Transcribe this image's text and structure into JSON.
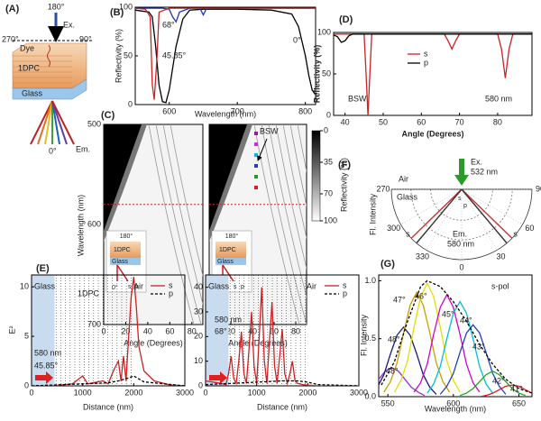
{
  "panel_A": {
    "label": "(A)",
    "top_angle": "180°",
    "excitation": "Ex.",
    "left_angle": "270°",
    "right_angle": "90°",
    "dye": "Dye",
    "stack": "1DPC",
    "substrate": "Glass",
    "bottom_angle": "0°",
    "emission": "Em."
  },
  "chart_data": [
    {
      "type": "line",
      "label": "(B)",
      "x_label": "Wavelength (nm)",
      "y_label": "Reflectivity (%)",
      "xlim": [
        550,
        815
      ],
      "ylim": [
        0,
        100
      ],
      "xticks": [
        600,
        700,
        800
      ],
      "yticks": [
        0,
        50,
        100
      ],
      "series": [
        {
          "name": "0°",
          "color": "#000000",
          "x": [
            550,
            560,
            570,
            575,
            580,
            585,
            590,
            595,
            600,
            610,
            620,
            630,
            650,
            700,
            750,
            780,
            790,
            800,
            805,
            810,
            815
          ],
          "values": [
            97,
            96,
            95,
            90,
            60,
            20,
            3,
            2,
            15,
            60,
            88,
            97,
            98,
            98,
            97,
            93,
            80,
            50,
            30,
            15,
            10
          ]
        },
        {
          "name": "68°",
          "color": "#2233bb",
          "x": [
            550,
            590,
            600,
            605,
            610,
            615,
            630,
            645,
            650,
            655,
            670,
            815
          ],
          "values": [
            99,
            99,
            98,
            90,
            85,
            95,
            99,
            99,
            92,
            99,
            99,
            99
          ]
        },
        {
          "name": "45.85°",
          "color": "#cc2222",
          "x": [
            550,
            565,
            572,
            575,
            578,
            582,
            585,
            600,
            650,
            700,
            800,
            815
          ],
          "values": [
            99,
            98,
            90,
            20,
            5,
            50,
            95,
            99,
            99,
            99,
            99,
            99
          ]
        }
      ]
    },
    {
      "type": "heatmap",
      "label": "(C)",
      "x_label": "Angle (Degrees)",
      "y_label": "Wavelength (nm)",
      "xlim": [
        0,
        90
      ],
      "ylim": [
        700,
        500
      ],
      "xticks": [
        0,
        20,
        40,
        60,
        80
      ],
      "yticks": [
        500,
        600,
        700
      ],
      "reference_y": 580,
      "annotation": "BSW",
      "colorbar": {
        "label": "Reflectivity (%)",
        "lim": [
          0,
          100
        ],
        "ticks": [
          0,
          35,
          70,
          100
        ]
      },
      "inset": {
        "top": "180°",
        "stack": "1DPC",
        "substrate": "Glass",
        "bottom": "0°",
        "s": "s",
        "p": "p"
      }
    },
    {
      "type": "line",
      "label": "(D)",
      "x_label": "Angle (Degrees)",
      "y_label": "Reflectivity (%)",
      "xlim": [
        37,
        89
      ],
      "ylim": [
        0,
        100
      ],
      "xticks": [
        40,
        50,
        60,
        70,
        80
      ],
      "yticks": [
        0,
        50,
        100
      ],
      "annotations": [
        "BSW",
        "580 nm"
      ],
      "series": [
        {
          "name": "s",
          "color": "#cc2222",
          "x": [
            37,
            45,
            45.5,
            46,
            46.5,
            47,
            66,
            67,
            68,
            69,
            70,
            80,
            81,
            82,
            83,
            84,
            89
          ],
          "values": [
            98,
            98,
            50,
            0,
            50,
            98,
            98,
            90,
            80,
            90,
            98,
            98,
            80,
            45,
            80,
            98,
            98
          ]
        },
        {
          "name": "p",
          "color": "#000000",
          "x": [
            37,
            38,
            39,
            40,
            41,
            42,
            89
          ],
          "values": [
            97,
            95,
            88,
            90,
            96,
            98,
            98
          ]
        }
      ]
    },
    {
      "type": "line",
      "label": "(E)",
      "x_label": "Distance (nm)",
      "y_label": "E²",
      "xlim": [
        0,
        3000
      ],
      "ylim": [
        0,
        11.2
      ],
      "xticks": [
        0,
        1000,
        2000,
        3000
      ],
      "yticks": [
        0,
        5,
        10
      ],
      "annotations": [
        "Glass",
        "1DPC",
        "Air",
        "580 nm",
        "45.85°"
      ],
      "series": [
        {
          "name": "s",
          "color": "#cc2222",
          "x": [
            0,
            400,
            800,
            1000,
            1100,
            1200,
            1400,
            1500,
            1600,
            1700,
            1750,
            1800,
            1850,
            1900,
            1950,
            2000,
            2050,
            2100,
            2200,
            2400,
            2700,
            3000
          ],
          "values": [
            0,
            0,
            0.2,
            1,
            0.2,
            0.3,
            0.5,
            0.2,
            1.5,
            2.5,
            0.5,
            3,
            0.5,
            5,
            9,
            11,
            8,
            4,
            1.5,
            0.5,
            0.1,
            0
          ]
        },
        {
          "name": "p",
          "color": "#000000",
          "dash": true,
          "x": [
            0,
            500,
            1000,
            1500,
            1700,
            1900,
            2000,
            2200,
            3000
          ],
          "values": [
            0,
            0.1,
            0.2,
            0.3,
            0.5,
            0.8,
            1,
            0.4,
            0
          ]
        }
      ]
    },
    {
      "type": "line",
      "x_label": "Distance (nm)",
      "xlim": [
        0,
        3000
      ],
      "ylim": [
        0,
        45
      ],
      "xticks": [
        0,
        1000,
        2000,
        3000
      ],
      "yticks": [
        0,
        10,
        20,
        30,
        40
      ],
      "annotations": [
        "Glass",
        "Air",
        "580 nm",
        "68°"
      ],
      "series": [
        {
          "name": "s",
          "color": "#cc2222",
          "x": [
            0,
            300,
            400,
            450,
            500,
            550,
            600,
            650,
            700,
            750,
            800,
            850,
            900,
            950,
            1000,
            1050,
            1100,
            1150,
            1200,
            1250,
            1300,
            1350,
            1400,
            1450,
            1500,
            1550,
            1600,
            1650,
            1700,
            1750,
            1800,
            1900,
            2000,
            2200,
            3000
          ],
          "values": [
            2,
            1,
            0.5,
            5,
            12,
            3,
            1,
            10,
            22,
            5,
            1,
            15,
            30,
            8,
            1,
            20,
            40,
            10,
            1,
            18,
            34,
            8,
            1,
            12,
            23,
            5,
            1,
            5,
            10,
            2,
            1,
            0.5,
            0.3,
            0,
            0
          ]
        },
        {
          "name": "p",
          "color": "#000000",
          "dash": true,
          "x": [
            0,
            500,
            1000,
            1500,
            1800,
            2000,
            2200,
            3000
          ],
          "values": [
            0.5,
            1,
            1.5,
            2,
            2,
            1.5,
            0.5,
            0
          ]
        }
      ]
    },
    {
      "type": "polar",
      "label": "(F)",
      "y_label": "Fl. Intensity",
      "angle_ticks": [
        270,
        300,
        330,
        0,
        30,
        60,
        90
      ],
      "annotations": {
        "excitation": "Ex.",
        "excitation_wavelength": "532 nm",
        "upper_medium": "Air",
        "lower_medium": "Glass",
        "emission": "Em.",
        "emission_wavelength": "580 nm"
      },
      "series": [
        {
          "name": "s",
          "color": "#cc3333",
          "values": [
            -45.85,
            45.85
          ]
        },
        {
          "name": "p",
          "color": "#333333",
          "values": [
            -40,
            40
          ]
        }
      ]
    },
    {
      "type": "line",
      "label": "(G)",
      "x_label": "Wavelength (nm)",
      "y_label": "Fl. Intensity",
      "xlim": [
        543,
        660
      ],
      "ylim": [
        0,
        1.05
      ],
      "xticks": [
        550,
        600,
        650
      ],
      "yticks": [
        {
          "value": 0,
          "label": "0.0"
        },
        0.5,
        {
          "value": 1,
          "label": "1.0"
        }
      ],
      "annotation": "s-pol",
      "series": [
        {
          "name": "48°",
          "color": "#9b30c8",
          "x": [
            528,
            533,
            538,
            543,
            548,
            553,
            558,
            563,
            568,
            573,
            578
          ],
          "values": [
            0.01,
            0.04,
            0.08,
            0.15,
            0.22,
            0.25,
            0.22,
            0.15,
            0.08,
            0.04,
            0.01
          ]
        },
        {
          "name": "48°",
          "color": "#1a1a7a",
          "x": [
            537,
            542,
            547,
            552,
            557,
            562,
            567,
            572,
            577,
            582,
            587
          ],
          "values": [
            0.02,
            0.08,
            0.19,
            0.37,
            0.53,
            0.6,
            0.53,
            0.37,
            0.19,
            0.08,
            0.02
          ]
        },
        {
          "name": "47°",
          "color": "#c8a000",
          "x": [
            547,
            552,
            557,
            562,
            567,
            572,
            577,
            582,
            587,
            592,
            597
          ],
          "values": [
            0.04,
            0.13,
            0.29,
            0.55,
            0.79,
            0.9,
            0.79,
            0.55,
            0.29,
            0.13,
            0.04
          ]
        },
        {
          "name": "46°",
          "color": "#e0e000",
          "x": [
            555,
            560,
            565,
            570,
            575,
            580,
            585,
            590,
            595,
            600,
            605
          ],
          "values": [
            0.04,
            0.14,
            0.31,
            0.6,
            0.86,
            0.98,
            0.86,
            0.6,
            0.31,
            0.14,
            0.04
          ]
        },
        {
          "name": "45°",
          "color": "#d000d0",
          "x": [
            570,
            575,
            580,
            585,
            590,
            595,
            600,
            605,
            610,
            615,
            620
          ],
          "values": [
            0.04,
            0.12,
            0.28,
            0.54,
            0.77,
            0.88,
            0.77,
            0.54,
            0.28,
            0.12,
            0.04
          ]
        },
        {
          "name": "44°",
          "color": "#00c0d0",
          "x": [
            580,
            585,
            590,
            595,
            600,
            605,
            610,
            615,
            620,
            625,
            630
          ],
          "values": [
            0.03,
            0.11,
            0.26,
            0.5,
            0.72,
            0.82,
            0.72,
            0.5,
            0.26,
            0.11,
            0.03
          ]
        },
        {
          "name": "43°",
          "color": "#2040c0",
          "x": [
            590,
            595,
            600,
            605,
            610,
            615,
            620,
            625,
            630,
            635,
            640
          ],
          "values": [
            0.02,
            0.09,
            0.2,
            0.38,
            0.55,
            0.62,
            0.55,
            0.38,
            0.2,
            0.09,
            0.02
          ]
        },
        {
          "name": "42°",
          "color": "#20a020",
          "x": [
            605,
            610,
            615,
            620,
            625,
            630,
            635,
            640,
            645,
            650,
            655
          ],
          "values": [
            0.01,
            0.03,
            0.07,
            0.13,
            0.19,
            0.22,
            0.19,
            0.13,
            0.07,
            0.03,
            0.01
          ]
        },
        {
          "name": "41°",
          "color": "#e02020",
          "x": [
            620,
            625,
            630,
            635,
            640,
            645,
            650,
            655,
            660,
            665,
            670
          ],
          "values": [
            0,
            0.01,
            0.03,
            0.06,
            0.09,
            0.1,
            0.09,
            0.06,
            0.03,
            0.01,
            0
          ]
        },
        {
          "color": "#000000",
          "dash": true,
          "x": [
            545,
            555,
            565,
            575,
            580,
            590,
            600,
            610,
            620,
            630,
            640,
            650,
            660
          ],
          "values": [
            0.1,
            0.3,
            0.65,
            0.95,
            1.0,
            0.95,
            0.82,
            0.65,
            0.45,
            0.28,
            0.15,
            0.07,
            0.03
          ]
        }
      ]
    }
  ]
}
